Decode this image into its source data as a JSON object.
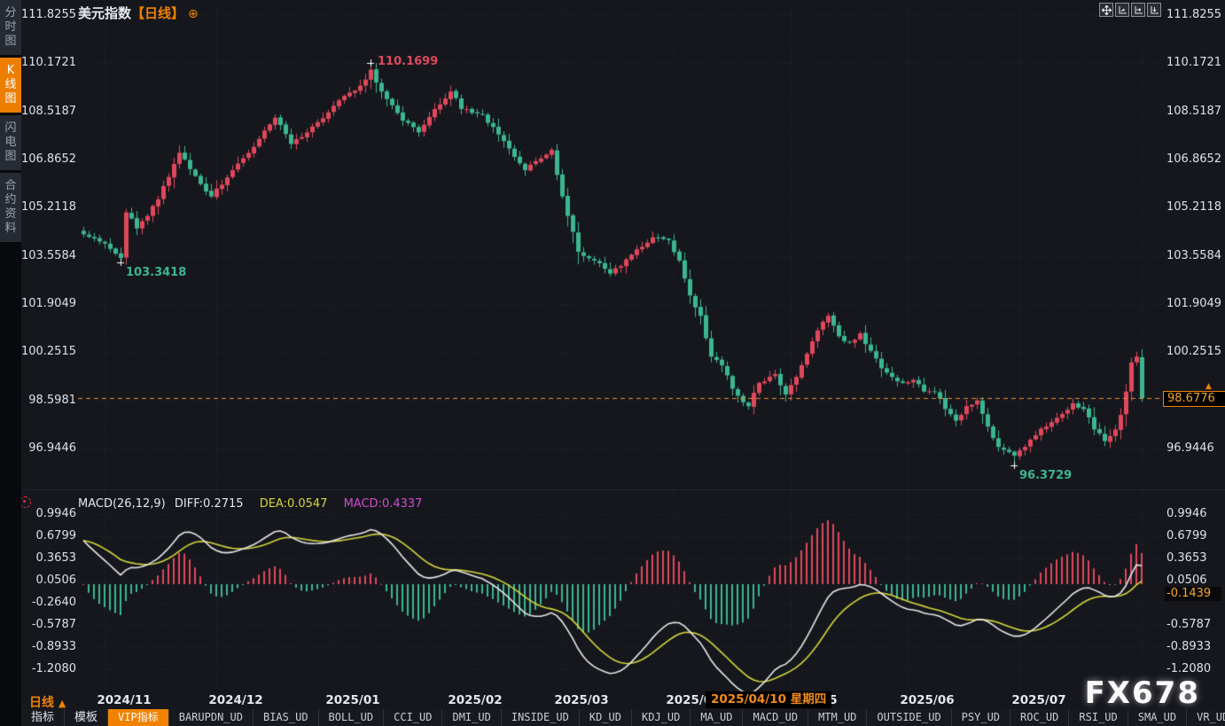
{
  "window": {
    "watermark": "FX678"
  },
  "sidebar": {
    "tabs": [
      {
        "label": "分时图",
        "active": false
      },
      {
        "label": "K线图",
        "active": true
      },
      {
        "label": "闪电图",
        "active": false
      },
      {
        "label": "合约资料",
        "active": false
      }
    ]
  },
  "header": {
    "symbol": "美元指数",
    "period": "【日线】",
    "add_icon": "⊕"
  },
  "top_toolbar": {
    "icons": [
      "move-icon",
      "axes-reset-icon",
      "axis-right-icon",
      "axis-bottom-icon"
    ]
  },
  "price_axis": {
    "ticks": [
      "111.8255",
      "110.1721",
      "108.5187",
      "106.8652",
      "105.2118",
      "103.5584",
      "101.9049",
      "100.2515",
      "98.5981",
      "96.9446"
    ],
    "last_price_badge": "98.6776"
  },
  "annotations": {
    "high": "110.1699",
    "low_nov": "103.3418",
    "low_jul": "96.3729"
  },
  "macd": {
    "title": "MACD(26,12,9)",
    "diff_label": "DIFF:0.2715",
    "dea_label": "DEA:0.0547",
    "macd_label": "MACD:0.4337",
    "ticks": [
      "0.9946",
      "0.6799",
      "0.3653",
      "0.0506",
      "-0.2640",
      "-0.5787",
      "-0.8933",
      "-1.2080"
    ],
    "badge": "-0.1439"
  },
  "x_axis": {
    "period_label": "日线",
    "period_arrow": "▲",
    "months": [
      "2024/11",
      "2024/12",
      "2025/01",
      "2025/02",
      "2025/03",
      "2025/04",
      "2025/05",
      "2025/06",
      "2025/07"
    ],
    "tooltip": "2025/04/10 星期四"
  },
  "bottom_toolbar": {
    "items": [
      {
        "label": "指标",
        "active": false
      },
      {
        "label": "模板",
        "active": false
      },
      {
        "label": "VIP指标",
        "active": true
      },
      {
        "label": "BARUPDN_UD",
        "active": false
      },
      {
        "label": "BIAS_UD",
        "active": false
      },
      {
        "label": "BOLL_UD",
        "active": false
      },
      {
        "label": "CCI_UD",
        "active": false
      },
      {
        "label": "DMI_UD",
        "active": false
      },
      {
        "label": "INSIDE_UD",
        "active": false
      },
      {
        "label": "KD_UD",
        "active": false
      },
      {
        "label": "KDJ_UD",
        "active": false
      },
      {
        "label": "MA_UD",
        "active": false
      },
      {
        "label": "MACD_UD",
        "active": false
      },
      {
        "label": "MTM_UD",
        "active": false
      },
      {
        "label": "OUTSIDE_UD",
        "active": false
      },
      {
        "label": "PSY_UD",
        "active": false
      },
      {
        "label": "ROC_UD",
        "active": false
      },
      {
        "label": "RSI_UD",
        "active": false
      },
      {
        "label": "SMA_UD",
        "active": false
      },
      {
        "label": "VR_UD",
        "active": false
      },
      {
        "label": ">>",
        "active": false
      }
    ]
  },
  "chart_data": {
    "type": "candlestick",
    "title": "美元指数【日线】",
    "interval": "daily",
    "sessions": 200,
    "start_date": "2024-10-28",
    "price_ticks": [
      111.8255,
      110.1721,
      108.5187,
      106.8652,
      105.2118,
      103.5584,
      101.9049,
      100.2515,
      98.5981,
      96.9446
    ],
    "close_keyframes": [
      [
        0,
        104.3
      ],
      [
        3,
        104.05
      ],
      [
        5,
        103.8
      ],
      [
        7,
        103.48
      ],
      [
        8,
        105.05
      ],
      [
        10,
        104.5
      ],
      [
        14,
        105.5
      ],
      [
        18,
        107.1
      ],
      [
        21,
        106.3
      ],
      [
        24,
        105.6
      ],
      [
        28,
        106.5
      ],
      [
        32,
        107.3
      ],
      [
        36,
        108.3
      ],
      [
        39,
        107.4
      ],
      [
        43,
        108.0
      ],
      [
        48,
        108.9
      ],
      [
        52,
        109.4
      ],
      [
        54,
        109.95
      ],
      [
        56,
        109.2
      ],
      [
        60,
        108.2
      ],
      [
        63,
        107.8
      ],
      [
        66,
        108.6
      ],
      [
        69,
        109.2
      ],
      [
        71,
        108.6
      ],
      [
        75,
        108.4
      ],
      [
        79,
        107.5
      ],
      [
        83,
        106.5
      ],
      [
        86,
        106.9
      ],
      [
        88,
        107.2
      ],
      [
        90,
        105.6
      ],
      [
        93,
        103.7
      ],
      [
        96,
        103.4
      ],
      [
        99,
        102.95
      ],
      [
        103,
        103.6
      ],
      [
        107,
        104.2
      ],
      [
        110,
        104.1
      ],
      [
        112,
        103.4
      ],
      [
        114,
        102.2
      ],
      [
        116,
        101.5
      ],
      [
        118,
        100.1
      ],
      [
        120,
        99.8
      ],
      [
        122,
        99.0
      ],
      [
        125,
        98.4
      ],
      [
        127,
        99.2
      ],
      [
        130,
        99.5
      ],
      [
        132,
        98.8
      ],
      [
        134,
        99.4
      ],
      [
        136,
        100.2
      ],
      [
        138,
        101.0
      ],
      [
        140,
        101.5
      ],
      [
        142,
        100.8
      ],
      [
        144,
        100.6
      ],
      [
        146,
        100.9
      ],
      [
        148,
        100.3
      ],
      [
        150,
        99.7
      ],
      [
        152,
        99.4
      ],
      [
        154,
        99.2
      ],
      [
        156,
        99.3
      ],
      [
        158,
        98.9
      ],
      [
        160,
        98.9
      ],
      [
        162,
        98.3
      ],
      [
        164,
        97.9
      ],
      [
        166,
        98.4
      ],
      [
        168,
        98.6
      ],
      [
        170,
        97.7
      ],
      [
        172,
        97.0
      ],
      [
        175,
        96.7
      ],
      [
        177,
        97.0
      ],
      [
        179,
        97.4
      ],
      [
        181,
        97.7
      ],
      [
        183,
        98.0
      ],
      [
        186,
        98.5
      ],
      [
        188,
        98.3
      ],
      [
        190,
        97.6
      ],
      [
        192,
        97.2
      ],
      [
        194,
        97.6
      ],
      [
        195,
        98.1
      ],
      [
        196,
        98.9
      ],
      [
        197,
        99.9
      ],
      [
        198,
        100.1
      ],
      [
        199,
        98.6776
      ]
    ],
    "extremes": {
      "high": {
        "index": 54,
        "price": 110.1699
      },
      "low_nov": {
        "index": 7,
        "price": 103.3418
      },
      "low_jul": {
        "index": 175,
        "price": 96.3729
      }
    },
    "last_candle": {
      "open": 100.08,
      "high": 100.35,
      "low": 98.55,
      "close": 98.6776
    },
    "last_price": 98.6776,
    "macd": {
      "params": [
        26,
        12,
        9
      ],
      "diff": 0.2715,
      "dea": 0.0547,
      "macd": 0.4337,
      "ticks": [
        0.9946,
        0.6799,
        0.3653,
        0.0506,
        -0.264,
        -0.5787,
        -0.8933,
        -1.208
      ],
      "crosshair_value": -0.1439
    },
    "colors": {
      "up": "#e0485c",
      "down": "#3cb690",
      "diff_line": "#e8e8e8",
      "dea_line": "#d6d63a",
      "macd_value": "#cf4ecf",
      "last_price_line": "#ef8e2e",
      "accent": "#f08200",
      "grid": "#2b2f39"
    },
    "legend_position": "top-left",
    "grid": true
  }
}
